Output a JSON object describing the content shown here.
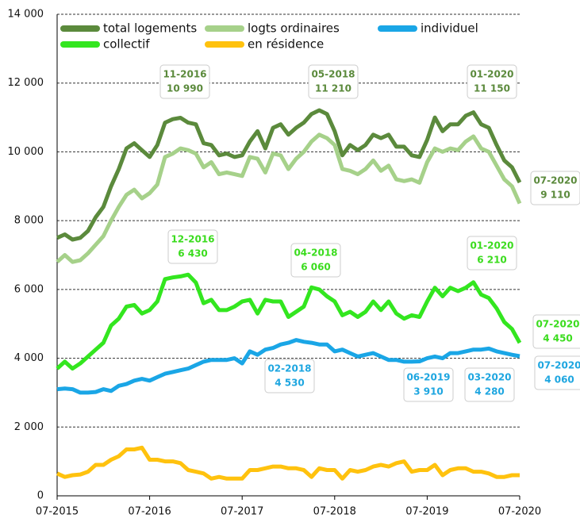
{
  "chart_data": {
    "type": "line",
    "categories": [
      "07-2015",
      null,
      null,
      null,
      null,
      null,
      null,
      null,
      null,
      null,
      null,
      null,
      "07-2016",
      null,
      null,
      null,
      null,
      null,
      null,
      null,
      null,
      null,
      null,
      null,
      "07-2017",
      null,
      null,
      null,
      null,
      null,
      null,
      null,
      null,
      null,
      null,
      null,
      "07-2018",
      null,
      null,
      null,
      null,
      null,
      null,
      null,
      null,
      null,
      null,
      null,
      "07-2019",
      null,
      null,
      null,
      null,
      null,
      null,
      null,
      null,
      null,
      null,
      null,
      "07-2020"
    ],
    "ylim": [
      0,
      14000
    ],
    "yticks": [
      0,
      {
        "value": 2000,
        "label": "2 000"
      },
      {
        "value": 4000,
        "label": "4 000"
      },
      {
        "value": 6000,
        "label": "6 000"
      },
      {
        "value": 8000,
        "label": "8 000"
      },
      {
        "value": 10000,
        "label": "10 000"
      },
      {
        "value": 12000,
        "label": "12 000"
      },
      {
        "value": 14000,
        "label": "14 000"
      }
    ],
    "grid": true,
    "series": [
      {
        "name": "total logements",
        "color": "#5b8a3c",
        "values": [
          7500,
          7600,
          7450,
          7500,
          7700,
          8100,
          8400,
          9000,
          9500,
          10100,
          10250,
          10050,
          9850,
          10200,
          10850,
          10950,
          10990,
          10850,
          10800,
          10250,
          10200,
          9900,
          9950,
          9850,
          9900,
          10300,
          10600,
          10100,
          10700,
          10800,
          10500,
          10700,
          10850,
          11100,
          11210,
          11100,
          10600,
          9900,
          10200,
          10050,
          10200,
          10500,
          10400,
          10500,
          10150,
          10150,
          9900,
          9850,
          10350,
          11000,
          10600,
          10800,
          10800,
          11050,
          11150,
          10800,
          10700,
          10200,
          9750,
          9550,
          9110
        ]
      },
      {
        "name": "logts ordinaires",
        "color": "#a6d18a",
        "values": [
          6800,
          7000,
          6800,
          6850,
          7050,
          7300,
          7550,
          8000,
          8400,
          8750,
          8900,
          8650,
          8800,
          9050,
          9850,
          9950,
          10100,
          10050,
          9950,
          9550,
          9700,
          9350,
          9400,
          9350,
          9300,
          9850,
          9800,
          9400,
          9950,
          9900,
          9500,
          9800,
          10000,
          10300,
          10500,
          10400,
          10200,
          9500,
          9450,
          9350,
          9500,
          9750,
          9450,
          9600,
          9200,
          9150,
          9200,
          9100,
          9700,
          10100,
          10000,
          10100,
          10050,
          10300,
          10450,
          10100,
          10000,
          9600,
          9200,
          9000,
          8500
        ]
      },
      {
        "name": "individuel",
        "color": "#1aa6e6",
        "values": [
          3100,
          3120,
          3100,
          3000,
          3000,
          3020,
          3100,
          3050,
          3200,
          3250,
          3350,
          3400,
          3350,
          3450,
          3550,
          3600,
          3650,
          3700,
          3800,
          3900,
          3950,
          3950,
          3950,
          4000,
          3850,
          4200,
          4100,
          4250,
          4300,
          4400,
          4450,
          4530,
          4480,
          4450,
          4400,
          4400,
          4200,
          4250,
          4150,
          4050,
          4100,
          4150,
          4050,
          3950,
          3950,
          3900,
          3900,
          3910,
          4000,
          4050,
          4000,
          4150,
          4150,
          4200,
          4250,
          4250,
          4280,
          4200,
          4150,
          4100,
          4060
        ]
      },
      {
        "name": "collectif",
        "color": "#33e61f",
        "values": [
          3700,
          3900,
          3700,
          3850,
          4050,
          4250,
          4450,
          4950,
          5150,
          5500,
          5550,
          5300,
          5400,
          5650,
          6300,
          6350,
          6380,
          6430,
          6200,
          5600,
          5700,
          5400,
          5400,
          5500,
          5650,
          5700,
          5300,
          5700,
          5650,
          5650,
          5200,
          5350,
          5500,
          6060,
          6000,
          5800,
          5650,
          5250,
          5350,
          5200,
          5350,
          5650,
          5400,
          5650,
          5300,
          5150,
          5250,
          5200,
          5650,
          6050,
          5800,
          6050,
          5950,
          6050,
          6210,
          5850,
          5750,
          5450,
          5050,
          4850,
          4450
        ]
      },
      {
        "name": "en résidence",
        "color": "#ffc20e",
        "values": [
          650,
          550,
          600,
          620,
          700,
          900,
          900,
          1050,
          1150,
          1350,
          1350,
          1400,
          1050,
          1050,
          1000,
          1000,
          950,
          750,
          700,
          650,
          500,
          550,
          500,
          500,
          500,
          750,
          750,
          800,
          850,
          850,
          800,
          800,
          750,
          550,
          800,
          750,
          750,
          500,
          750,
          700,
          750,
          850,
          900,
          850,
          950,
          1000,
          700,
          750,
          750,
          900,
          600,
          750,
          800,
          800,
          700,
          700,
          650,
          550,
          550,
          600,
          600
        ]
      }
    ],
    "annotations": [
      {
        "date": "11-2016",
        "text": "10 990"
      },
      {
        "date": "05-2018",
        "text": "11 210"
      },
      {
        "date": "01-2020",
        "text": "11 150"
      },
      {
        "date": "07-2020",
        "text": "9 110"
      },
      {
        "date": "12-2016",
        "text": "6 430"
      },
      {
        "date": "04-2018",
        "text": "6 060"
      },
      {
        "date": "01-2020",
        "text": "6 210"
      },
      {
        "date": "07-2020",
        "text": "4 450"
      },
      {
        "date": "02-2018",
        "text": "4 530"
      },
      {
        "date": "06-2019",
        "text": "3 910"
      },
      {
        "date": "03-2020",
        "text": "4 280"
      },
      {
        "date": "07-2020",
        "text": "4 060"
      }
    ]
  }
}
